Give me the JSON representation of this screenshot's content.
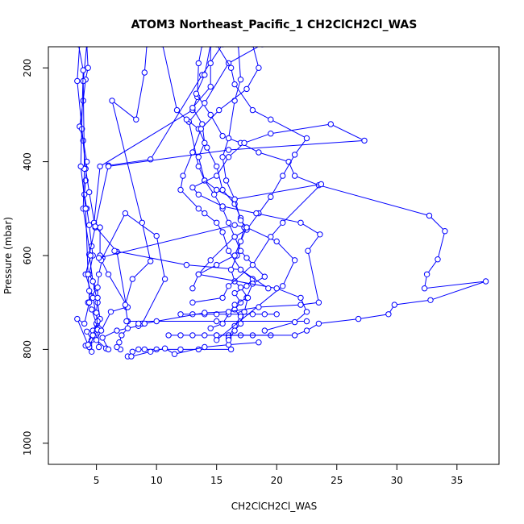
{
  "chart_data": {
    "type": "line",
    "title": "ATOM3 Northeast_Pacific_1 CH2ClCH2Cl_WAS",
    "xlabel": "CH2ClCH2Cl_WAS",
    "ylabel": "Pressure (mbar)",
    "xlim": [
      1,
      38.5
    ],
    "ylim": [
      1045,
      155
    ],
    "y_reversed": true,
    "x_ticks": [
      5,
      10,
      15,
      20,
      25,
      30,
      35
    ],
    "y_ticks": [
      200,
      400,
      600,
      800,
      1000
    ],
    "grid": false,
    "marker": "open-circle",
    "color": "#0000ff",
    "series": [
      {
        "points": [
          [
            4.6,
            805
          ],
          [
            4.6,
            780
          ],
          [
            4.2,
            762
          ],
          [
            4.7,
            760
          ],
          [
            5.0,
            745
          ],
          [
            4.6,
            715
          ],
          [
            4.3,
            700
          ],
          [
            4.6,
            687
          ],
          [
            5.0,
            670
          ],
          [
            4.4,
            640
          ],
          [
            4.7,
            600
          ],
          [
            4.6,
            580
          ],
          [
            4.4,
            535
          ],
          [
            4.2,
            500
          ],
          [
            4.0,
            470
          ],
          [
            4.1,
            440
          ],
          [
            4.2,
            400
          ],
          [
            3.9,
            355
          ],
          [
            3.6,
            325
          ],
          [
            3.9,
            270
          ],
          [
            4.1,
            225
          ],
          [
            4.3,
            200
          ],
          [
            4.2,
            150
          ]
        ]
      },
      {
        "points": [
          [
            4.4,
            795
          ],
          [
            4.8,
            772
          ],
          [
            5.2,
            755
          ],
          [
            5.3,
            735
          ],
          [
            5.1,
            700
          ],
          [
            4.7,
            655
          ],
          [
            4.4,
            598
          ],
          [
            4.9,
            540
          ],
          [
            4.4,
            465
          ],
          [
            4.1,
            415
          ],
          [
            3.8,
            330
          ],
          [
            3.4,
            228
          ],
          [
            3.6,
            150
          ]
        ]
      },
      {
        "points": [
          [
            4.1,
            792
          ],
          [
            4.7,
            770
          ],
          [
            5.1,
            740
          ],
          [
            4.7,
            690
          ],
          [
            4.1,
            640
          ],
          [
            4.5,
            600
          ],
          [
            3.9,
            500
          ],
          [
            4.0,
            415
          ],
          [
            3.9,
            228
          ],
          [
            4.2,
            150
          ]
        ]
      },
      {
        "points": [
          [
            5.2,
            795
          ],
          [
            5.1,
            758
          ],
          [
            5.0,
            722
          ],
          [
            5.1,
            690
          ],
          [
            5.1,
            668
          ],
          [
            5.2,
            640
          ],
          [
            5.5,
            605
          ],
          [
            5.3,
            600
          ],
          [
            5.3,
            540
          ],
          [
            4.8,
            530
          ],
          [
            5.3,
            410
          ],
          [
            13.0,
            290
          ],
          [
            13.4,
            262
          ],
          [
            13.5,
            190
          ],
          [
            13.8,
            150
          ]
        ]
      },
      {
        "points": [
          [
            5.8,
            798
          ],
          [
            5.0,
            780
          ],
          [
            5.4,
            760
          ],
          [
            6.2,
            720
          ],
          [
            7.5,
            710
          ],
          [
            6.7,
            592
          ],
          [
            4.9,
            538
          ],
          [
            6.0,
            408
          ],
          [
            9.5,
            395
          ],
          [
            13.8,
            215
          ],
          [
            15.5,
            150
          ]
        ]
      },
      {
        "points": [
          [
            6.0,
            800
          ],
          [
            5.5,
            775
          ],
          [
            6.7,
            760
          ],
          [
            8.5,
            750
          ],
          [
            8.8,
            745
          ],
          [
            10.7,
            650
          ],
          [
            10.0,
            558
          ],
          [
            7.4,
            510
          ],
          [
            5.4,
            610
          ],
          [
            6.0,
            640
          ],
          [
            7.6,
            710
          ]
        ]
      },
      {
        "points": [
          [
            7.0,
            800
          ],
          [
            6.7,
            795
          ],
          [
            6.9,
            785
          ],
          [
            7.1,
            770
          ],
          [
            7.6,
            755
          ],
          [
            7.6,
            740
          ],
          [
            7.4,
            705
          ],
          [
            8.0,
            650
          ],
          [
            9.5,
            612
          ],
          [
            8.8,
            530
          ],
          [
            6.3,
            270
          ],
          [
            8.3,
            310
          ],
          [
            9.0,
            210
          ],
          [
            9.2,
            150
          ]
        ]
      },
      {
        "points": [
          [
            7.6,
            815
          ],
          [
            8.0,
            805
          ],
          [
            8.5,
            800
          ],
          [
            9.0,
            800
          ],
          [
            10.0,
            800
          ],
          [
            12.0,
            800
          ],
          [
            13.5,
            800
          ],
          [
            16.2,
            800
          ]
        ]
      },
      {
        "points": [
          [
            7.9,
            815
          ],
          [
            9.5,
            805
          ],
          [
            10.7,
            798
          ],
          [
            11.5,
            810
          ],
          [
            14.0,
            795
          ],
          [
            16.0,
            790
          ],
          [
            18.5,
            785
          ]
        ]
      },
      {
        "points": [
          [
            11.0,
            770
          ],
          [
            12.0,
            770
          ],
          [
            13.0,
            770
          ],
          [
            14.0,
            770
          ],
          [
            15.0,
            770
          ],
          [
            16.0,
            770
          ],
          [
            17.0,
            770
          ],
          [
            18.0,
            770
          ],
          [
            19.5,
            770
          ]
        ]
      },
      {
        "points": [
          [
            12.0,
            725
          ],
          [
            13.0,
            725
          ],
          [
            14.0,
            725
          ],
          [
            15.0,
            725
          ],
          [
            16.0,
            725
          ],
          [
            17.0,
            725
          ],
          [
            18.0,
            725
          ],
          [
            19.0,
            725
          ],
          [
            20.0,
            725
          ]
        ]
      },
      {
        "points": [
          [
            7.5,
            740
          ],
          [
            15.0,
            740
          ],
          [
            22.5,
            740
          ]
        ]
      },
      {
        "points": [
          [
            6.5,
            590
          ],
          [
            12.5,
            620
          ],
          [
            17.0,
            630
          ],
          [
            18.0,
            650
          ],
          [
            17.5,
            665
          ],
          [
            16.5,
            680
          ],
          [
            17.0,
            700
          ],
          [
            16.5,
            715
          ],
          [
            17.0,
            730
          ],
          [
            16.5,
            750
          ],
          [
            16.0,
            775
          ]
        ]
      },
      {
        "points": [
          [
            15.0,
            770
          ],
          [
            21.5,
            770
          ],
          [
            22.5,
            760
          ],
          [
            23.5,
            745
          ],
          [
            26.8,
            735
          ],
          [
            29.3,
            725
          ],
          [
            29.8,
            705
          ],
          [
            32.8,
            695
          ],
          [
            37.4,
            655
          ],
          [
            32.3,
            670
          ],
          [
            32.5,
            640
          ],
          [
            33.4,
            608
          ],
          [
            34.0,
            548
          ],
          [
            32.7,
            515
          ],
          [
            23.5,
            450
          ],
          [
            21.5,
            430
          ],
          [
            21.0,
            400
          ],
          [
            18.5,
            380
          ],
          [
            17.0,
            360
          ],
          [
            15.5,
            345
          ],
          [
            14.5,
            300
          ],
          [
            13.3,
            255
          ],
          [
            14.0,
            215
          ],
          [
            14.5,
            150
          ]
        ]
      },
      {
        "points": [
          [
            14.5,
            755
          ],
          [
            15.5,
            745
          ],
          [
            16.5,
            705
          ],
          [
            17.5,
            690
          ],
          [
            18.0,
            660
          ],
          [
            19.0,
            645
          ],
          [
            17.5,
            605
          ],
          [
            17.0,
            590
          ],
          [
            16.5,
            560
          ],
          [
            16.0,
            530
          ],
          [
            15.5,
            500
          ],
          [
            14.8,
            470
          ],
          [
            14.0,
            440
          ],
          [
            13.5,
            410
          ],
          [
            12.7,
            315
          ],
          [
            14.0,
            275
          ],
          [
            16.0,
            190
          ],
          [
            18.8,
            150
          ]
        ]
      },
      {
        "points": [
          [
            16.0,
            780
          ],
          [
            16.5,
            760
          ],
          [
            17.0,
            745
          ],
          [
            17.3,
            720
          ],
          [
            17.6,
            690
          ],
          [
            17.0,
            668
          ],
          [
            16.5,
            655
          ],
          [
            16.2,
            630
          ],
          [
            16.7,
            600
          ],
          [
            17.3,
            540
          ],
          [
            17.0,
            520
          ],
          [
            16.5,
            490
          ],
          [
            15.5,
            460
          ],
          [
            15.0,
            410
          ],
          [
            14.2,
            370
          ],
          [
            13.5,
            330
          ],
          [
            12.5,
            310
          ],
          [
            11.7,
            290
          ],
          [
            10.5,
            150
          ]
        ]
      },
      {
        "points": [
          [
            15.0,
            780
          ],
          [
            20.5,
            665
          ],
          [
            21.5,
            610
          ],
          [
            20.0,
            570
          ],
          [
            17.5,
            540
          ],
          [
            17.0,
            525
          ],
          [
            16.5,
            480
          ],
          [
            15.8,
            440
          ],
          [
            15.5,
            390
          ],
          [
            16.0,
            350
          ],
          [
            16.5,
            270
          ],
          [
            17.0,
            225
          ],
          [
            16.8,
            150
          ]
        ]
      },
      {
        "points": [
          [
            19.0,
            760
          ],
          [
            21.5,
            742
          ],
          [
            22.5,
            720
          ],
          [
            22.0,
            690
          ],
          [
            20.0,
            670
          ],
          [
            13.5,
            640
          ],
          [
            14.5,
            610
          ],
          [
            16.5,
            560
          ],
          [
            17.5,
            545
          ],
          [
            18.5,
            510
          ],
          [
            19.5,
            475
          ],
          [
            20.5,
            430
          ],
          [
            21.5,
            385
          ],
          [
            22.5,
            350
          ],
          [
            19.5,
            310
          ],
          [
            18.0,
            290
          ],
          [
            16.5,
            235
          ],
          [
            16.2,
            200
          ],
          [
            15.0,
            150
          ]
        ]
      },
      {
        "points": [
          [
            13.0,
            700
          ],
          [
            15.5,
            690
          ],
          [
            16.0,
            665
          ],
          [
            18.0,
            620
          ],
          [
            19.5,
            560
          ],
          [
            20.5,
            530
          ],
          [
            23.7,
            448
          ],
          [
            16.5,
            480
          ],
          [
            15.0,
            460
          ],
          [
            14.0,
            440
          ],
          [
            13.5,
            390
          ],
          [
            14.0,
            360
          ],
          [
            13.8,
            320
          ],
          [
            13.0,
            285
          ],
          [
            14.5,
            240
          ],
          [
            14.5,
            190
          ],
          [
            14.5,
            150
          ]
        ]
      },
      {
        "points": [
          [
            13.0,
            670
          ],
          [
            13.5,
            640
          ],
          [
            15.0,
            620
          ],
          [
            16.5,
            600
          ],
          [
            17.0,
            570
          ],
          [
            17.5,
            540
          ],
          [
            16.5,
            535
          ],
          [
            5.2,
            605
          ]
        ]
      },
      {
        "points": [
          [
            4.3,
            790
          ],
          [
            3.4,
            735
          ],
          [
            4.0,
            745
          ],
          [
            4.4,
            700
          ],
          [
            4.4,
            675
          ],
          [
            4.3,
            640
          ],
          [
            4.1,
            500
          ],
          [
            3.7,
            410
          ],
          [
            3.9,
            205
          ],
          [
            3.5,
            150
          ]
        ]
      },
      {
        "points": [
          [
            19.3,
            670
          ],
          [
            17.0,
            630
          ],
          [
            16.0,
            590
          ],
          [
            15.5,
            550
          ],
          [
            15.0,
            530
          ],
          [
            14.0,
            510
          ],
          [
            13.5,
            500
          ],
          [
            12.0,
            460
          ],
          [
            12.2,
            430
          ],
          [
            13.0,
            380
          ],
          [
            13.7,
            330
          ],
          [
            15.2,
            290
          ],
          [
            17.5,
            245
          ],
          [
            18.5,
            200
          ],
          [
            18.0,
            150
          ]
        ]
      },
      {
        "points": [
          [
            8.5,
            745
          ],
          [
            9.0,
            745
          ],
          [
            10.0,
            740
          ],
          [
            14.0,
            722
          ],
          [
            16.0,
            720
          ],
          [
            18.5,
            710
          ],
          [
            22.0,
            705
          ],
          [
            23.5,
            700
          ],
          [
            22.6,
            590
          ],
          [
            23.6,
            555
          ],
          [
            22.0,
            530
          ],
          [
            18.3,
            510
          ],
          [
            15.5,
            495
          ],
          [
            13.5,
            470
          ],
          [
            13.0,
            455
          ],
          [
            15.0,
            430
          ],
          [
            16.0,
            390
          ],
          [
            17.3,
            360
          ],
          [
            19.5,
            340
          ],
          [
            24.5,
            320
          ],
          [
            27.3,
            355
          ],
          [
            16.0,
            375
          ],
          [
            6.0,
            410
          ]
        ]
      }
    ]
  }
}
